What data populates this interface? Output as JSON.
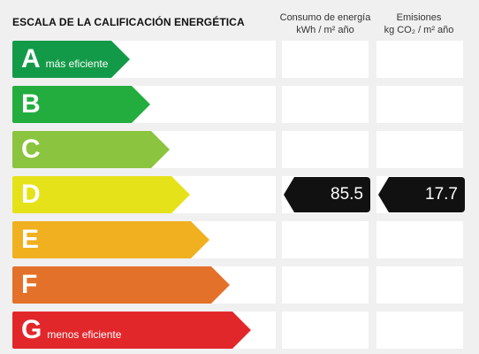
{
  "header": {
    "title": "ESCALA DE LA CALIFICACIÓN ENERGÉTICA",
    "consumo_line1": "Consumo de energía",
    "consumo_line2": "kWh / m² año",
    "emisiones_line1": "Emisiones",
    "emisiones_line2": "kg CO₂ / m² año"
  },
  "ratings": [
    {
      "letter": "A",
      "sub": "más eficiente",
      "color": "#139a48"
    },
    {
      "letter": "B",
      "sub": "",
      "color": "#23ad3f"
    },
    {
      "letter": "C",
      "sub": "",
      "color": "#8bc43f"
    },
    {
      "letter": "D",
      "sub": "",
      "color": "#e6e21a"
    },
    {
      "letter": "E",
      "sub": "",
      "color": "#f0b01f"
    },
    {
      "letter": "F",
      "sub": "",
      "color": "#e4712a"
    },
    {
      "letter": "G",
      "sub": "menos eficiente",
      "color": "#e2272a"
    }
  ],
  "current": {
    "rating": "D",
    "consumo": "85.5",
    "emisiones": "17.7"
  }
}
